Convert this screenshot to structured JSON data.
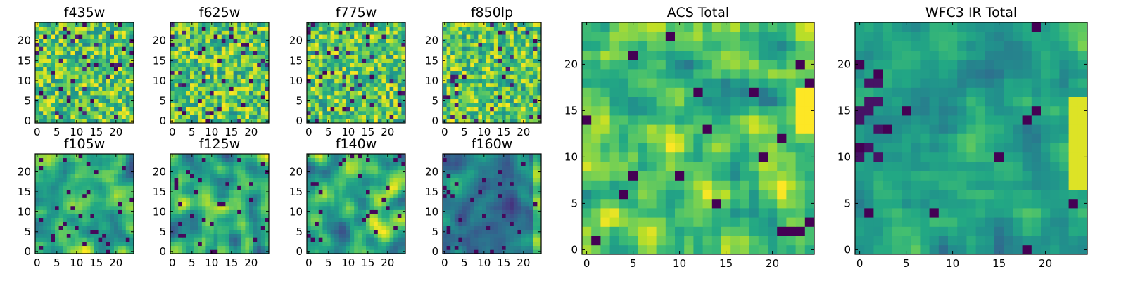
{
  "figure": {
    "panels": [
      "f435w",
      "f625w",
      "f775w",
      "f850lp",
      "f105w",
      "f125w",
      "f140w",
      "f160w",
      "ACS Total",
      "WFC3 IR Total"
    ]
  },
  "chart_data": [
    {
      "type": "heatmap",
      "title": "f435w",
      "grid": [
        25,
        25
      ],
      "xlim": [
        0,
        24
      ],
      "ylim": [
        0,
        24
      ],
      "xticks": [
        0,
        5,
        10,
        15,
        20
      ],
      "yticks": [
        0,
        5,
        10,
        15,
        20
      ],
      "colormap": "viridis",
      "pattern": "noise",
      "seed": 11
    },
    {
      "type": "heatmap",
      "title": "f625w",
      "grid": [
        25,
        25
      ],
      "xlim": [
        0,
        24
      ],
      "ylim": [
        0,
        24
      ],
      "xticks": [
        0,
        5,
        10,
        15,
        20
      ],
      "yticks": [
        0,
        5,
        10,
        15,
        20
      ],
      "colormap": "viridis",
      "pattern": "noise",
      "seed": 23
    },
    {
      "type": "heatmap",
      "title": "f775w",
      "grid": [
        25,
        25
      ],
      "xlim": [
        0,
        24
      ],
      "ylim": [
        0,
        24
      ],
      "xticks": [
        0,
        5,
        10,
        15,
        20
      ],
      "yticks": [
        0,
        5,
        10,
        15,
        20
      ],
      "colormap": "viridis",
      "pattern": "noise",
      "seed": 37
    },
    {
      "type": "heatmap",
      "title": "f850lp",
      "grid": [
        25,
        25
      ],
      "xlim": [
        0,
        24
      ],
      "ylim": [
        0,
        24
      ],
      "xticks": [
        0,
        5,
        10,
        15,
        20
      ],
      "yticks": [
        0,
        5,
        10,
        15,
        20
      ],
      "colormap": "viridis",
      "pattern": "noise",
      "seed": 41
    },
    {
      "type": "heatmap",
      "title": "f105w",
      "grid": [
        25,
        25
      ],
      "xlim": [
        0,
        24
      ],
      "ylim": [
        0,
        24
      ],
      "xticks": [
        0,
        5,
        10,
        15,
        20
      ],
      "yticks": [
        0,
        5,
        10,
        15,
        20
      ],
      "colormap": "viridis",
      "pattern": "smooth",
      "seed": 53
    },
    {
      "type": "heatmap",
      "title": "f125w",
      "grid": [
        25,
        25
      ],
      "xlim": [
        0,
        24
      ],
      "ylim": [
        0,
        24
      ],
      "xticks": [
        0,
        5,
        10,
        15,
        20
      ],
      "yticks": [
        0,
        5,
        10,
        15,
        20
      ],
      "colormap": "viridis",
      "pattern": "smooth",
      "seed": 67
    },
    {
      "type": "heatmap",
      "title": "f140w",
      "grid": [
        25,
        25
      ],
      "xlim": [
        0,
        24
      ],
      "ylim": [
        0,
        24
      ],
      "xticks": [
        0,
        5,
        10,
        15,
        20
      ],
      "yticks": [
        0,
        5,
        10,
        15,
        20
      ],
      "colormap": "viridis",
      "pattern": "smooth",
      "seed": 79
    },
    {
      "type": "heatmap",
      "title": "f160w",
      "grid": [
        25,
        25
      ],
      "xlim": [
        0,
        24
      ],
      "ylim": [
        0,
        24
      ],
      "xticks": [
        0,
        5,
        10,
        15,
        20
      ],
      "yticks": [
        0,
        5,
        10,
        15,
        20
      ],
      "colormap": "viridis",
      "pattern": "smooth_dark",
      "seed": 83
    },
    {
      "type": "heatmap",
      "title": "ACS Total",
      "grid": [
        25,
        25
      ],
      "xlim": [
        0,
        24
      ],
      "ylim": [
        0,
        24
      ],
      "xticks": [
        0,
        5,
        10,
        15,
        20
      ],
      "yticks": [
        0,
        5,
        10,
        15,
        20
      ],
      "colormap": "viridis",
      "pattern": "total",
      "seed": 97
    },
    {
      "type": "heatmap",
      "title": "WFC3 IR Total",
      "grid": [
        25,
        25
      ],
      "xlim": [
        0,
        24
      ],
      "ylim": [
        0,
        24
      ],
      "xticks": [
        0,
        5,
        10,
        15,
        20
      ],
      "yticks": [
        0,
        5,
        10,
        15,
        20
      ],
      "colormap": "viridis",
      "pattern": "total_ir",
      "seed": 101
    }
  ]
}
